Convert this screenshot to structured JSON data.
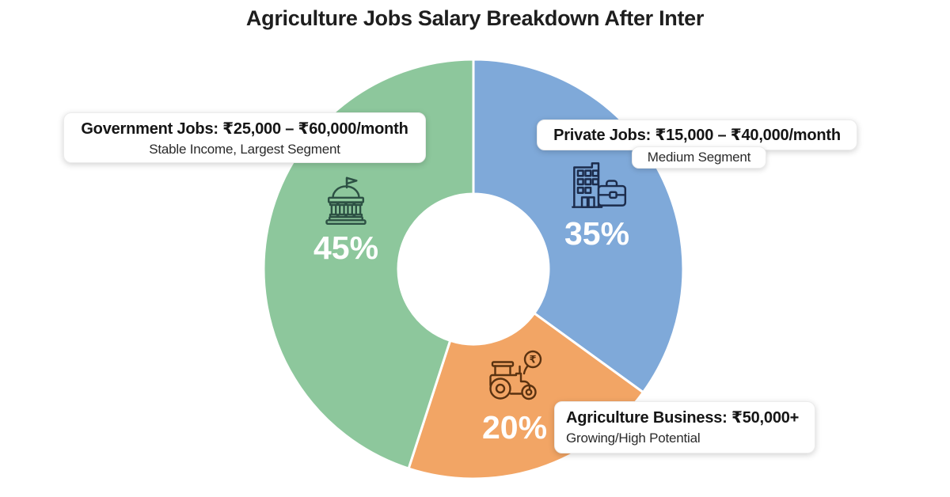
{
  "title": "Agriculture Jobs Salary Breakdown After Inter",
  "background_color": "#ffffff",
  "chart_data": {
    "type": "pie",
    "donut": true,
    "start_angle_deg": 0,
    "direction": "clockwise",
    "title": "Agriculture Jobs Salary Breakdown After Inter",
    "categories": [
      "Private Jobs",
      "Agriculture Business",
      "Government Jobs"
    ],
    "values": [
      35,
      20,
      45
    ],
    "slices": [
      {
        "id": "private",
        "name": "Private Jobs",
        "value": 35,
        "percent_label": "35%",
        "color": "#7FA9D9",
        "icon": "office-building-briefcase-icon",
        "icon_color": "#1C2C4C",
        "callout_title": "Private Jobs: ₹15,000 – ₹40,000/month",
        "callout_subtitle": "Medium Segment"
      },
      {
        "id": "business",
        "name": "Agriculture Business",
        "value": 20,
        "percent_label": "20%",
        "color": "#F2A565",
        "icon": "tractor-rupee-icon",
        "icon_color": "#5A3210",
        "callout_title": "Agriculture Business: ₹50,000+",
        "callout_subtitle": "Growing/High Potential"
      },
      {
        "id": "government",
        "name": "Government Jobs",
        "value": 45,
        "percent_label": "45%",
        "color": "#8DC79C",
        "icon": "government-building-icon",
        "icon_color": "#2D5144",
        "callout_title": "Government Jobs: ₹25,000 – ₹60,000/month",
        "callout_subtitle": "Stable Income, Largest Segment"
      }
    ]
  }
}
